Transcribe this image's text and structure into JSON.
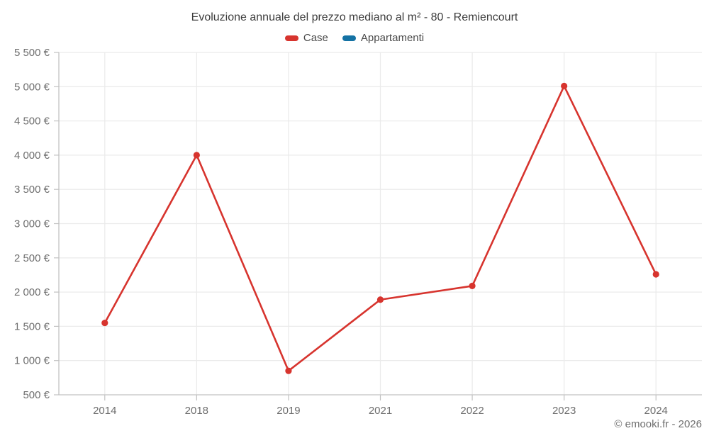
{
  "header": {
    "title": "Evoluzione annuale del prezzo mediano al m² - 80 - Remiencourt"
  },
  "footer": {
    "credit": "© emooki.fr - 2026"
  },
  "chart_data": {
    "type": "line",
    "title": "Evoluzione annuale del prezzo mediano al m² - 80 - Remiencourt",
    "categories": [
      "2014",
      "2018",
      "2019",
      "2021",
      "2022",
      "2023",
      "2024"
    ],
    "series": [
      {
        "name": "Case",
        "color": "#d7342e",
        "values": [
          1550,
          4000,
          850,
          1890,
          2090,
          5010,
          2260
        ]
      },
      {
        "name": "Appartamenti",
        "color": "#1472a4",
        "values": []
      }
    ],
    "xlabel": "",
    "ylabel": "",
    "ylim": [
      500,
      5500
    ],
    "ytick_step": 500,
    "ytick_labels": [
      "500 €",
      "1 000 €",
      "1 500 €",
      "2 000 €",
      "2 500 €",
      "3 000 €",
      "3 500 €",
      "4 000 €",
      "4 500 €",
      "5 000 €",
      "5 500 €"
    ],
    "grid": true,
    "legend_position": "top-center"
  },
  "colors": {
    "background": "#ffffff",
    "grid": "#ebebeb",
    "axis": "#c2c2c2",
    "tick_label": "#6e6e6e",
    "title_text": "#3d3d3d",
    "legend_text": "#4a4a4a"
  }
}
